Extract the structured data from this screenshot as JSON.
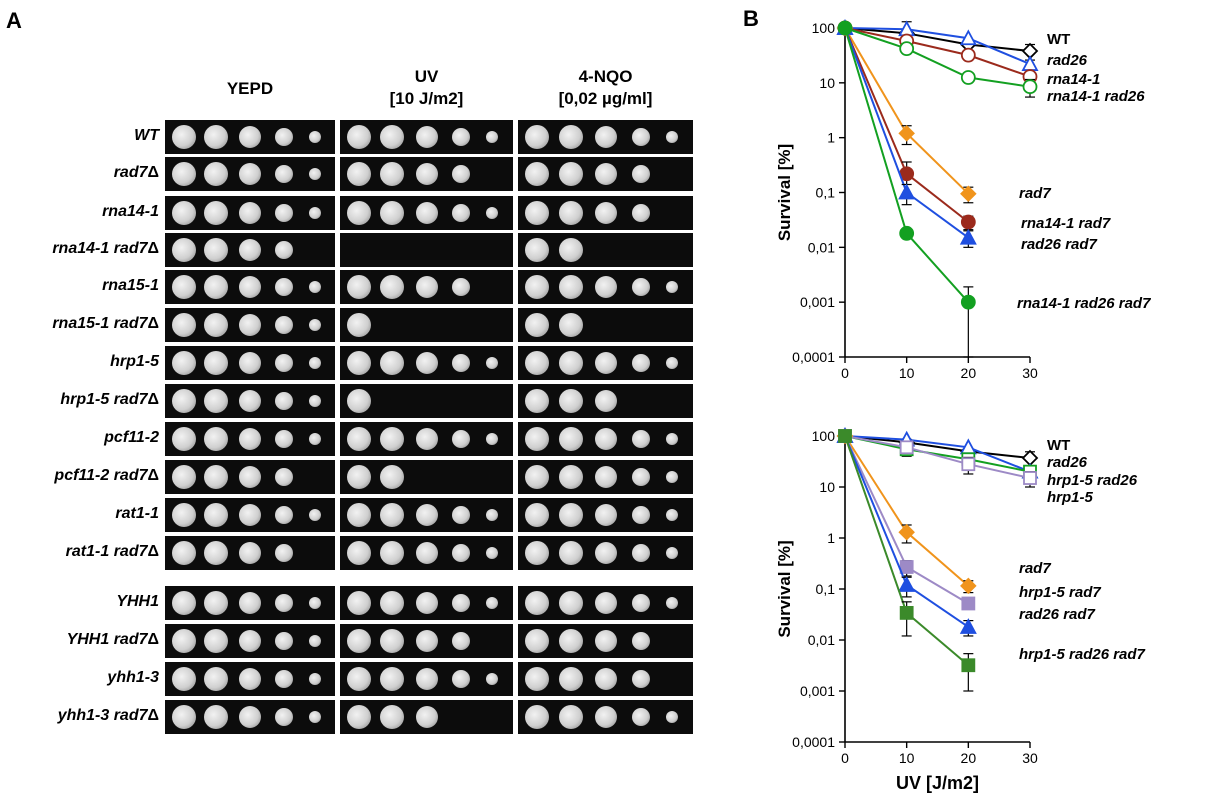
{
  "panel_a": {
    "label": "A",
    "columns": [
      {
        "title": "YEPD",
        "subtitle": ""
      },
      {
        "title": "UV",
        "subtitle": "[10 J/m2]"
      },
      {
        "title": "4-NQO",
        "subtitle": "[0,02 µg/ml]"
      }
    ],
    "strains": [
      {
        "name": "WT",
        "delta": "",
        "growth": [
          5,
          5,
          5
        ]
      },
      {
        "name": "rad7",
        "delta": "Δ",
        "growth": [
          5,
          4,
          4
        ]
      },
      {
        "name": "rna14-1",
        "delta": "",
        "growth": [
          5,
          5,
          4
        ]
      },
      {
        "name": "rna14-1 rad7",
        "delta": "Δ",
        "growth": [
          4,
          0,
          2
        ]
      },
      {
        "name": "rna15-1",
        "delta": "",
        "growth": [
          5,
          4,
          5
        ]
      },
      {
        "name": "rna15-1 rad7",
        "delta": "Δ",
        "growth": [
          5,
          1,
          2
        ]
      },
      {
        "name": "hrp1-5",
        "delta": "",
        "growth": [
          5,
          5,
          5
        ]
      },
      {
        "name": "hrp1-5 rad7",
        "delta": "Δ",
        "growth": [
          5,
          1,
          3
        ]
      },
      {
        "name": "pcf11-2",
        "delta": "",
        "growth": [
          5,
          5,
          5
        ]
      },
      {
        "name": "pcf11-2 rad7",
        "delta": "Δ",
        "growth": [
          4,
          2,
          5
        ]
      },
      {
        "name": "rat1-1",
        "delta": "",
        "growth": [
          5,
          5,
          5
        ]
      },
      {
        "name": "rat1-1 rad7",
        "delta": "Δ",
        "growth": [
          4,
          5,
          5
        ]
      },
      {
        "name": "YHH1",
        "delta": "",
        "growth": [
          5,
          5,
          5
        ]
      },
      {
        "name": "YHH1 rad7",
        "delta": "Δ",
        "growth": [
          5,
          4,
          4
        ]
      },
      {
        "name": "yhh1-3",
        "delta": "",
        "growth": [
          5,
          5,
          4
        ]
      },
      {
        "name": "yhh1-3 rad7",
        "delta": "Δ",
        "growth": [
          5,
          3,
          5
        ]
      }
    ],
    "colors": {
      "plate": "#0c0c0c",
      "colony": "#cfcfcf"
    }
  },
  "panel_b": {
    "label": "B"
  },
  "chart_data": [
    {
      "type": "line",
      "title": "",
      "xlabel": "",
      "ylabel": "Survival [%]",
      "x": [
        0,
        10,
        20,
        30
      ],
      "xlim": [
        0,
        30
      ],
      "ylim": [
        0.0001,
        100
      ],
      "yscale": "log",
      "xticks": [
        "0",
        "10",
        "20",
        "30"
      ],
      "yticks": [
        "100",
        "10",
        "1",
        "0,1",
        "0,01",
        "0,001",
        "0,0001"
      ],
      "series": [
        {
          "name": "WT",
          "color": "#000000",
          "marker": "diamond-open",
          "x": [
            0,
            10,
            20,
            30
          ],
          "values": [
            100,
            80,
            50,
            38
          ],
          "err": [
            0,
            0,
            0,
            12
          ]
        },
        {
          "name": "rad26",
          "color": "#1f4fe0",
          "marker": "triangle-open",
          "x": [
            0,
            10,
            20,
            30
          ],
          "values": [
            100,
            95,
            65,
            22
          ],
          "err": [
            0,
            35,
            0,
            0
          ]
        },
        {
          "name": "rna14-1",
          "color": "#9b2a1c",
          "marker": "circle-open",
          "x": [
            0,
            10,
            20,
            30
          ],
          "values": [
            100,
            58,
            32,
            13
          ],
          "err": [
            0,
            0,
            0,
            0
          ]
        },
        {
          "name": "rna14-1 rad26",
          "color": "#13a021",
          "marker": "circle-open",
          "x": [
            0,
            10,
            20,
            30
          ],
          "values": [
            100,
            42,
            12.5,
            8.5
          ],
          "err": [
            0,
            0,
            0,
            3
          ]
        },
        {
          "name": "rad7",
          "color": "#f0941c",
          "marker": "diamond",
          "x": [
            0,
            10,
            20
          ],
          "values": [
            100,
            1.2,
            0.095
          ],
          "err": [
            0,
            0.45,
            0.03
          ]
        },
        {
          "name": "rna14-1 rad7",
          "color": "#9b2a1c",
          "marker": "circle",
          "x": [
            0,
            10,
            20
          ],
          "values": [
            100,
            0.22,
            0.029
          ],
          "err": [
            0,
            0.14,
            0.008
          ]
        },
        {
          "name": "rad26 rad7",
          "color": "#1f4fe0",
          "marker": "triangle",
          "x": [
            0,
            10,
            20
          ],
          "values": [
            100,
            0.1,
            0.015
          ],
          "err": [
            0,
            0.04,
            0.005
          ]
        },
        {
          "name": "rna14-1 rad26 rad7",
          "color": "#13a021",
          "marker": "circle",
          "x": [
            0,
            10,
            20
          ],
          "values": [
            100,
            0.018,
            0.001
          ],
          "err": [
            0,
            0,
            0.0009
          ]
        }
      ]
    },
    {
      "type": "line",
      "title": "",
      "xlabel": "UV [J/m2]",
      "ylabel": "Survival [%]",
      "x": [
        0,
        10,
        20,
        30
      ],
      "xlim": [
        0,
        30
      ],
      "ylim": [
        0.0001,
        100
      ],
      "yscale": "log",
      "xticks": [
        "0",
        "10",
        "20",
        "30"
      ],
      "yticks": [
        "100",
        "10",
        "1",
        "0,1",
        "0,01",
        "0,001",
        "0,0001"
      ],
      "series": [
        {
          "name": "WT",
          "color": "#000000",
          "marker": "diamond-open",
          "x": [
            0,
            10,
            20,
            30
          ],
          "values": [
            100,
            75,
            50,
            37
          ],
          "err": [
            0,
            0,
            0,
            12
          ]
        },
        {
          "name": "rad26",
          "color": "#1f4fe0",
          "marker": "triangle-open",
          "x": [
            0,
            10,
            20,
            30
          ],
          "values": [
            100,
            85,
            60,
            20
          ],
          "err": [
            0,
            0,
            0,
            0
          ]
        },
        {
          "name": "hrp1-5 rad26",
          "color": "#13a021",
          "marker": "square-open",
          "x": [
            0,
            10,
            20,
            30
          ],
          "values": [
            100,
            55,
            35,
            20
          ],
          "err": [
            0,
            15,
            0,
            0
          ]
        },
        {
          "name": "hrp1-5",
          "color": "#9d8ac6",
          "marker": "square-open",
          "x": [
            0,
            10,
            20,
            30
          ],
          "values": [
            100,
            60,
            28,
            15
          ],
          "err": [
            0,
            0,
            10,
            5
          ]
        },
        {
          "name": "rad7",
          "color": "#f0941c",
          "marker": "diamond",
          "x": [
            0,
            10,
            20
          ],
          "values": [
            100,
            1.3,
            0.115
          ],
          "err": [
            0,
            0.5,
            0.03
          ]
        },
        {
          "name": "hrp1-5 rad7",
          "color": "#9d8ac6",
          "marker": "square",
          "x": [
            0,
            10,
            20
          ],
          "values": [
            100,
            0.27,
            0.052
          ],
          "err": [
            0,
            0.09,
            0.01
          ]
        },
        {
          "name": "rad26 rad7",
          "color": "#1f4fe0",
          "marker": "triangle",
          "x": [
            0,
            10,
            20
          ],
          "values": [
            100,
            0.12,
            0.018
          ],
          "err": [
            0,
            0.05,
            0.006
          ]
        },
        {
          "name": "hrp1-5 rad26 rad7",
          "color": "#3b8a2a",
          "marker": "square",
          "x": [
            0,
            10,
            20
          ],
          "values": [
            100,
            0.034,
            0.0032
          ],
          "err": [
            0,
            0.022,
            0.0022
          ]
        }
      ]
    }
  ]
}
